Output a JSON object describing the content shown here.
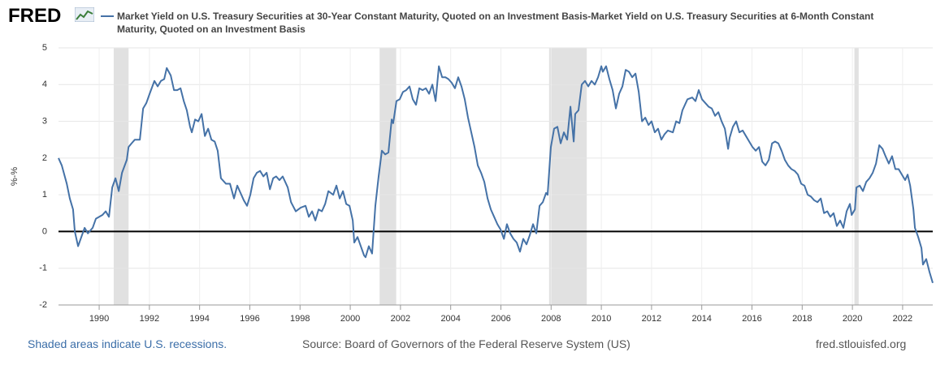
{
  "chart_data": {
    "type": "line",
    "logo": "FRED",
    "ylabel": "%-%",
    "footer_left": "Shaded areas indicate U.S. recessions.",
    "source": "Source: Board of Governors of the Federal Reserve System (US)",
    "site": "fred.stlouisfed.org",
    "xlim": [
      1988.38,
      2023.2
    ],
    "xticks": [
      1990,
      1992,
      1994,
      1996,
      1998,
      2000,
      2002,
      2004,
      2006,
      2008,
      2010,
      2012,
      2014,
      2016,
      2018,
      2020,
      2022
    ],
    "ylim": [
      -2,
      5
    ],
    "yticks": [
      -2,
      -1,
      0,
      1,
      2,
      3,
      4,
      5
    ],
    "grid": true,
    "zero_line": true,
    "recessions": [
      [
        1990.58,
        1991.17
      ],
      [
        2001.17,
        2001.83
      ],
      [
        2007.92,
        2009.42
      ],
      [
        2020.08,
        2020.25
      ]
    ],
    "recession_color": "#e1e1e1",
    "x": [
      1988.38,
      1988.51,
      1988.71,
      1988.83,
      1988.96,
      1989.03,
      1989.16,
      1989.29,
      1989.42,
      1989.55,
      1989.74,
      1989.87,
      1990.13,
      1990.26,
      1990.39,
      1990.52,
      1990.65,
      1990.78,
      1990.91,
      1991.1,
      1991.17,
      1991.29,
      1991.42,
      1991.62,
      1991.75,
      1991.88,
      1992.01,
      1992.2,
      1992.33,
      1992.46,
      1992.59,
      1992.69,
      1992.85,
      1992.98,
      1993.11,
      1993.24,
      1993.37,
      1993.49,
      1993.62,
      1993.69,
      1993.82,
      1993.95,
      1994.08,
      1994.21,
      1994.34,
      1994.47,
      1994.6,
      1994.72,
      1994.85,
      1995.05,
      1995.21,
      1995.37,
      1995.5,
      1995.63,
      1995.76,
      1995.89,
      1996.02,
      1996.15,
      1996.28,
      1996.41,
      1996.54,
      1996.67,
      1996.8,
      1996.93,
      1997.05,
      1997.18,
      1997.31,
      1997.51,
      1997.64,
      1997.83,
      1998.03,
      1998.22,
      1998.35,
      1998.48,
      1998.61,
      1998.74,
      1998.87,
      1999.0,
      1999.13,
      1999.32,
      1999.45,
      1999.58,
      1999.71,
      1999.84,
      1999.97,
      2000.1,
      2000.16,
      2000.29,
      2000.42,
      2000.55,
      2000.61,
      2000.74,
      2000.87,
      2001.0,
      2001.13,
      2001.26,
      2001.39,
      2001.52,
      2001.65,
      2001.71,
      2001.84,
      2001.97,
      2002.1,
      2002.23,
      2002.36,
      2002.49,
      2002.62,
      2002.75,
      2002.88,
      2003.01,
      2003.14,
      2003.27,
      2003.4,
      2003.53,
      2003.66,
      2003.79,
      2003.91,
      2004.04,
      2004.17,
      2004.3,
      2004.43,
      2004.56,
      2004.69,
      2004.82,
      2004.95,
      2005.08,
      2005.21,
      2005.34,
      2005.47,
      2005.6,
      2005.73,
      2005.86,
      2005.99,
      2006.12,
      2006.24,
      2006.37,
      2006.5,
      2006.63,
      2006.76,
      2006.89,
      2007.02,
      2007.15,
      2007.28,
      2007.41,
      2007.54,
      2007.67,
      2007.8,
      2007.86,
      2007.99,
      2008.12,
      2008.25,
      2008.38,
      2008.51,
      2008.64,
      2008.77,
      2008.9,
      2008.96,
      2009.09,
      2009.22,
      2009.35,
      2009.48,
      2009.61,
      2009.74,
      2009.87,
      2010.0,
      2010.06,
      2010.19,
      2010.32,
      2010.45,
      2010.58,
      2010.71,
      2010.84,
      2010.97,
      2011.1,
      2011.23,
      2011.36,
      2011.49,
      2011.62,
      2011.75,
      2011.88,
      2012.0,
      2012.13,
      2012.26,
      2012.39,
      2012.52,
      2012.65,
      2012.85,
      2012.98,
      2013.11,
      2013.23,
      2013.43,
      2013.62,
      2013.75,
      2013.88,
      2014.01,
      2014.14,
      2014.27,
      2014.4,
      2014.53,
      2014.66,
      2014.79,
      2014.92,
      2015.05,
      2015.11,
      2015.24,
      2015.37,
      2015.5,
      2015.63,
      2015.76,
      2015.89,
      2016.02,
      2016.15,
      2016.28,
      2016.41,
      2016.54,
      2016.67,
      2016.8,
      2016.92,
      2017.05,
      2017.18,
      2017.31,
      2017.44,
      2017.57,
      2017.7,
      2017.83,
      2017.96,
      2018.09,
      2018.22,
      2018.35,
      2018.48,
      2018.61,
      2018.74,
      2018.87,
      2019.0,
      2019.12,
      2019.25,
      2019.38,
      2019.51,
      2019.64,
      2019.77,
      2019.9,
      2019.97,
      2020.1,
      2020.16,
      2020.29,
      2020.42,
      2020.55,
      2020.68,
      2020.81,
      2020.94,
      2021.07,
      2021.2,
      2021.32,
      2021.45,
      2021.58,
      2021.71,
      2021.84,
      2021.97,
      2022.1,
      2022.2,
      2022.3,
      2022.43,
      2022.49,
      2022.62,
      2022.75,
      2022.81,
      2022.94,
      2023.07,
      2023.2
    ],
    "series": [
      {
        "name": "Market Yield on U.S. Treasury Securities at 30-Year Constant Maturity, Quoted on an Investment Basis-Market Yield on U.S. Treasury Securities at 6-Month Constant Maturity, Quoted on an Investment Basis",
        "color": "#4572a7",
        "values": [
          2.0,
          1.8,
          1.3,
          0.9,
          0.6,
          0.0,
          -0.4,
          -0.15,
          0.1,
          -0.05,
          0.1,
          0.35,
          0.45,
          0.55,
          0.4,
          1.2,
          1.45,
          1.1,
          1.6,
          1.95,
          2.3,
          2.4,
          2.5,
          2.5,
          3.35,
          3.5,
          3.75,
          4.1,
          3.95,
          4.1,
          4.15,
          4.45,
          4.25,
          3.85,
          3.85,
          3.9,
          3.55,
          3.3,
          2.85,
          2.7,
          3.05,
          3.0,
          3.2,
          2.6,
          2.8,
          2.5,
          2.45,
          2.2,
          1.45,
          1.3,
          1.3,
          0.9,
          1.25,
          1.05,
          0.85,
          0.7,
          1.0,
          1.45,
          1.6,
          1.65,
          1.5,
          1.6,
          1.15,
          1.45,
          1.5,
          1.4,
          1.5,
          1.2,
          0.8,
          0.55,
          0.65,
          0.7,
          0.4,
          0.55,
          0.3,
          0.6,
          0.55,
          0.75,
          1.1,
          1.0,
          1.25,
          0.9,
          1.1,
          0.75,
          0.7,
          0.3,
          -0.3,
          -0.15,
          -0.4,
          -0.65,
          -0.7,
          -0.4,
          -0.6,
          0.7,
          1.5,
          2.2,
          2.1,
          2.15,
          3.05,
          2.95,
          3.55,
          3.6,
          3.8,
          3.85,
          3.95,
          3.6,
          3.45,
          3.9,
          3.85,
          3.9,
          3.75,
          4.0,
          3.55,
          4.5,
          4.2,
          4.2,
          4.15,
          4.05,
          3.9,
          4.2,
          3.95,
          3.6,
          3.1,
          2.7,
          2.3,
          1.8,
          1.6,
          1.35,
          0.9,
          0.6,
          0.4,
          0.2,
          0.05,
          -0.2,
          0.2,
          -0.05,
          -0.2,
          -0.3,
          -0.55,
          -0.2,
          -0.35,
          -0.1,
          0.2,
          -0.05,
          0.7,
          0.8,
          1.05,
          1.0,
          2.3,
          2.8,
          2.85,
          2.4,
          2.7,
          2.5,
          3.4,
          2.45,
          3.2,
          3.3,
          4.0,
          4.1,
          3.95,
          4.1,
          4.0,
          4.2,
          4.5,
          4.35,
          4.5,
          4.15,
          3.85,
          3.35,
          3.75,
          3.95,
          4.4,
          4.35,
          4.2,
          4.3,
          3.8,
          3.0,
          3.1,
          2.9,
          3.0,
          2.7,
          2.8,
          2.5,
          2.65,
          2.75,
          2.7,
          3.0,
          2.95,
          3.3,
          3.6,
          3.65,
          3.55,
          3.85,
          3.6,
          3.5,
          3.4,
          3.35,
          3.15,
          3.25,
          3.0,
          2.8,
          2.25,
          2.55,
          2.85,
          3.0,
          2.7,
          2.75,
          2.6,
          2.45,
          2.3,
          2.2,
          2.3,
          1.9,
          1.8,
          1.95,
          2.4,
          2.45,
          2.4,
          2.2,
          1.95,
          1.8,
          1.7,
          1.65,
          1.55,
          1.3,
          1.25,
          1.0,
          0.95,
          0.85,
          0.8,
          0.9,
          0.5,
          0.55,
          0.4,
          0.5,
          0.15,
          0.3,
          0.1,
          0.55,
          0.75,
          0.45,
          0.6,
          1.2,
          1.25,
          1.1,
          1.35,
          1.45,
          1.6,
          1.85,
          2.35,
          2.25,
          2.05,
          1.85,
          2.05,
          1.7,
          1.7,
          1.55,
          1.4,
          1.55,
          1.25,
          0.6,
          0.1,
          -0.15,
          -0.45,
          -0.9,
          -0.75,
          -1.1,
          -1.4
        ]
      }
    ]
  }
}
